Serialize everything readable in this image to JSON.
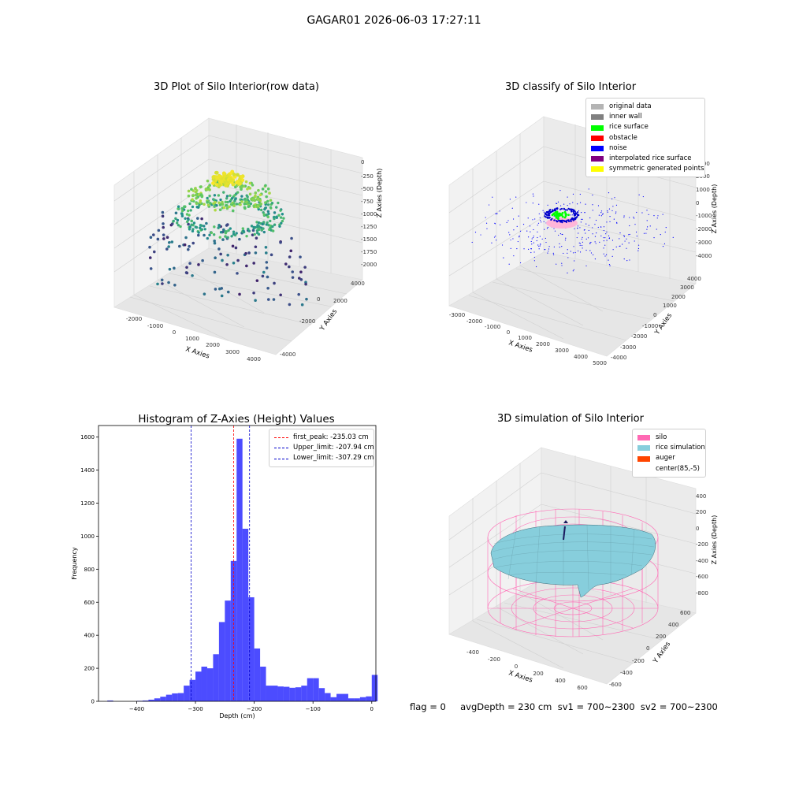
{
  "suptitle": "GAGAR01 2026-06-03 17:27:11",
  "chart_data": [
    {
      "id": "raw",
      "type": "scatter",
      "title": "3D Plot of Silo Interior(row data)",
      "xlabel": "X Axies",
      "ylabel": "Y Axies",
      "zlabel": "Z Axies (Depth)",
      "xticks": [
        "-2000",
        "-1000",
        "0",
        "1000",
        "2000",
        "3000",
        "4000"
      ],
      "yticks": [
        "-4000",
        "-2000",
        "0",
        "2000",
        "4000"
      ],
      "zticks": [
        "0",
        "-250",
        "-500",
        "-750",
        "-1000",
        "-1250",
        "-1500",
        "-1750",
        "-2000"
      ],
      "colormap": "viridis"
    },
    {
      "id": "classify",
      "type": "scatter",
      "title": "3D classify of Silo Interior",
      "zlabel": "Z Axies (Depth)",
      "xlabel": "X Axies",
      "ylabel": "Y Axies",
      "xticks": [
        "-3000",
        "-2000",
        "-1000",
        "0",
        "1000",
        "2000",
        "3000",
        "4000",
        "5000"
      ],
      "yticks": [
        "-4000",
        "-3000",
        "-2000",
        "-1000",
        "0",
        "1000",
        "2000",
        "3000",
        "4000"
      ],
      "zticks": [
        "3000",
        "2000",
        "1000",
        "0",
        "-1000",
        "-2000",
        "-3000",
        "-4000"
      ],
      "legend": [
        {
          "label": "original data",
          "color": "#b4b4b4"
        },
        {
          "label": "inner wall",
          "color": "#808080"
        },
        {
          "label": "rice surface",
          "color": "#00ff00"
        },
        {
          "label": "obstacle",
          "color": "#ff0000"
        },
        {
          "label": "noise",
          "color": "#0000ff"
        },
        {
          "label": "interpolated rice surface",
          "color": "#800080"
        },
        {
          "label": "symmetric generated points",
          "color": "#ffff00"
        }
      ]
    },
    {
      "id": "hist",
      "type": "bar",
      "title": "Histogram of Z-Axies (Height) Values",
      "xlabel": "Depth (cm)",
      "ylabel": "Frequency",
      "xlim": [
        -465,
        7
      ],
      "ylim": [
        0,
        1670
      ],
      "xticks": [
        -400,
        -300,
        -200,
        -100,
        0
      ],
      "yticks": [
        0,
        200,
        400,
        600,
        800,
        1000,
        1200,
        1400,
        1600
      ],
      "bin_width": 10,
      "bin_starts": [
        -450,
        -440,
        -430,
        -420,
        -410,
        -400,
        -390,
        -380,
        -370,
        -360,
        -350,
        -340,
        -330,
        -320,
        -310,
        -300,
        -290,
        -280,
        -270,
        -260,
        -250,
        -240,
        -230,
        -220,
        -210,
        -200,
        -190,
        -180,
        -170,
        -160,
        -150,
        -140,
        -130,
        -120,
        -110,
        -100,
        -90,
        -80,
        -70,
        -60,
        -50,
        -40,
        -30,
        -20,
        -10,
        0
      ],
      "values": [
        5,
        0,
        0,
        0,
        0,
        3,
        5,
        10,
        18,
        28,
        40,
        48,
        50,
        95,
        130,
        180,
        210,
        200,
        285,
        480,
        610,
        850,
        1590,
        1045,
        630,
        320,
        210,
        95,
        95,
        90,
        88,
        82,
        85,
        95,
        140,
        140,
        80,
        50,
        25,
        45,
        45,
        18,
        18,
        25,
        30,
        160
      ],
      "series_color": "#0000ff",
      "lines": [
        {
          "label": "first_peak: -235.03 cm",
          "x": -235.03,
          "color": "#ff0000"
        },
        {
          "label": "Upper_limit: -207.94 cm",
          "x": -207.94,
          "color": "#0000cc"
        },
        {
          "label": "Lower_limit: -307.29 cm",
          "x": -307.29,
          "color": "#0000cc"
        }
      ]
    },
    {
      "id": "sim",
      "type": "other",
      "title": "3D simulation of Silo Interior",
      "xlabel": "X Axies",
      "ylabel": "Y Axies",
      "zlabel": "Z Axies (Depth)",
      "xticks": [
        "-400",
        "-200",
        "0",
        "200",
        "400",
        "600"
      ],
      "yticks": [
        "-600",
        "-400",
        "-200",
        "0",
        "200",
        "400",
        "600"
      ],
      "zticks": [
        "400",
        "200",
        "0",
        "-200",
        "-400",
        "-600",
        "-800"
      ],
      "legend": [
        {
          "label": "silo",
          "color": "#ff69b4"
        },
        {
          "label": "rice simulation",
          "color": "#87cedc"
        },
        {
          "label": "auger",
          "color": "#ff4500"
        },
        {
          "label": "center(85,-5)",
          "color": "#ffffff"
        }
      ]
    }
  ],
  "footer": "flag = 0     avgDepth = 230 cm  sv1 = 700~2300  sv2 = 700~2300"
}
